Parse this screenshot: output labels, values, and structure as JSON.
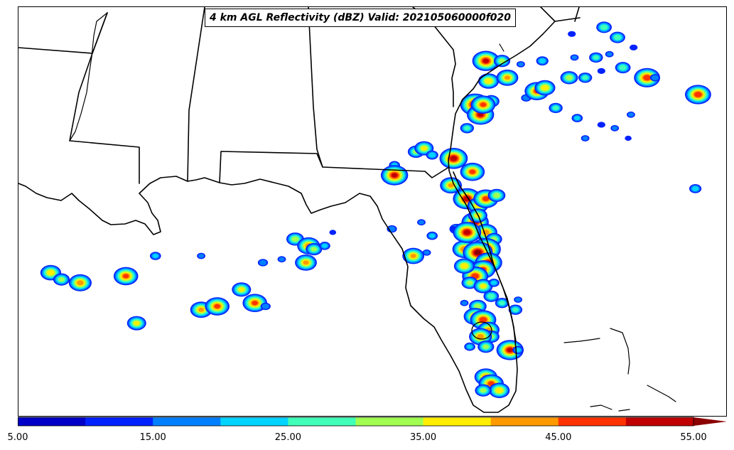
{
  "map": {
    "title": "4 km AGL Reflectivity (dBZ) Valid: 202105060000f020"
  },
  "colorbar": {
    "min": 5,
    "max": 55,
    "extend": "max",
    "colors": [
      "#0000c8",
      "#0022ff",
      "#0080ff",
      "#00d4ff",
      "#40ffb8",
      "#a0ff50",
      "#ffee00",
      "#ff9900",
      "#ff3300",
      "#c00000"
    ],
    "extend_color": "#8b0000",
    "ticks": [
      "5.00",
      "15.00",
      "25.00",
      "35.00",
      "45.00",
      "55.00"
    ]
  },
  "storms": [
    {
      "lon": -96.8,
      "lat": 28.3,
      "dbz": 38
    },
    {
      "lon": -96.4,
      "lat": 28.1,
      "dbz": 30
    },
    {
      "lon": -95.7,
      "lat": 28.0,
      "dbz": 42
    },
    {
      "lon": -94.0,
      "lat": 28.2,
      "dbz": 45
    },
    {
      "lon": -93.6,
      "lat": 26.8,
      "dbz": 35
    },
    {
      "lon": -92.9,
      "lat": 28.8,
      "dbz": 20
    },
    {
      "lon": -91.2,
      "lat": 27.2,
      "dbz": 40
    },
    {
      "lon": -91.2,
      "lat": 28.8,
      "dbz": 15
    },
    {
      "lon": -90.6,
      "lat": 27.3,
      "dbz": 45
    },
    {
      "lon": -89.7,
      "lat": 27.8,
      "dbz": 35
    },
    {
      "lon": -89.2,
      "lat": 27.4,
      "dbz": 45
    },
    {
      "lon": -88.8,
      "lat": 27.3,
      "dbz": 18
    },
    {
      "lon": -88.9,
      "lat": 28.6,
      "dbz": 18
    },
    {
      "lon": -88.2,
      "lat": 28.7,
      "dbz": 15
    },
    {
      "lon": -87.7,
      "lat": 29.3,
      "dbz": 32
    },
    {
      "lon": -87.2,
      "lat": 29.1,
      "dbz": 42
    },
    {
      "lon": -87.0,
      "lat": 29.0,
      "dbz": 30
    },
    {
      "lon": -86.6,
      "lat": 29.1,
      "dbz": 20
    },
    {
      "lon": -87.3,
      "lat": 28.6,
      "dbz": 40
    },
    {
      "lon": -86.3,
      "lat": 29.5,
      "dbz": 12
    },
    {
      "lon": -84.1,
      "lat": 29.6,
      "dbz": 18
    },
    {
      "lon": -83.0,
      "lat": 29.8,
      "dbz": 15
    },
    {
      "lon": -82.6,
      "lat": 29.4,
      "dbz": 20
    },
    {
      "lon": -81.4,
      "lat": 29.0,
      "dbz": 44
    },
    {
      "lon": -83.3,
      "lat": 28.8,
      "dbz": 40
    },
    {
      "lon": -81.7,
      "lat": 29.6,
      "dbz": 25
    },
    {
      "lon": -81.8,
      "lat": 29.6,
      "dbz": 14
    },
    {
      "lon": -82.8,
      "lat": 28.9,
      "dbz": 15
    },
    {
      "lon": -84.0,
      "lat": 31.5,
      "dbz": 20
    },
    {
      "lon": -83.2,
      "lat": 31.9,
      "dbz": 30
    },
    {
      "lon": -82.9,
      "lat": 32.0,
      "dbz": 35
    },
    {
      "lon": -82.6,
      "lat": 31.8,
      "dbz": 22
    },
    {
      "lon": -81.8,
      "lat": 31.7,
      "dbz": 52
    },
    {
      "lon": -84.0,
      "lat": 31.2,
      "dbz": 50
    },
    {
      "lon": -81.3,
      "lat": 32.6,
      "dbz": 25
    },
    {
      "lon": -81.0,
      "lat": 33.3,
      "dbz": 55
    },
    {
      "lon": -80.8,
      "lat": 33.0,
      "dbz": 50
    },
    {
      "lon": -80.4,
      "lat": 33.4,
      "dbz": 30
    },
    {
      "lon": -80.7,
      "lat": 33.3,
      "dbz": 45
    },
    {
      "lon": -80.5,
      "lat": 34.0,
      "dbz": 38
    },
    {
      "lon": -79.8,
      "lat": 34.1,
      "dbz": 40
    },
    {
      "lon": -80.6,
      "lat": 34.6,
      "dbz": 50
    },
    {
      "lon": -80.0,
      "lat": 34.6,
      "dbz": 30
    },
    {
      "lon": -79.1,
      "lat": 33.5,
      "dbz": 18
    },
    {
      "lon": -78.7,
      "lat": 33.7,
      "dbz": 45
    },
    {
      "lon": -78.4,
      "lat": 33.8,
      "dbz": 38
    },
    {
      "lon": -78.0,
      "lat": 33.2,
      "dbz": 25
    },
    {
      "lon": -77.5,
      "lat": 34.1,
      "dbz": 32
    },
    {
      "lon": -76.9,
      "lat": 34.1,
      "dbz": 25
    },
    {
      "lon": -76.3,
      "lat": 34.3,
      "dbz": 14
    },
    {
      "lon": -75.5,
      "lat": 34.4,
      "dbz": 28
    },
    {
      "lon": -74.6,
      "lat": 34.1,
      "dbz": 48
    },
    {
      "lon": -74.3,
      "lat": 34.1,
      "dbz": 18
    },
    {
      "lon": -76.5,
      "lat": 34.7,
      "dbz": 25
    },
    {
      "lon": -76.0,
      "lat": 34.8,
      "dbz": 15
    },
    {
      "lon": -77.3,
      "lat": 34.7,
      "dbz": 15
    },
    {
      "lon": -78.5,
      "lat": 34.6,
      "dbz": 22
    },
    {
      "lon": -75.7,
      "lat": 35.3,
      "dbz": 28
    },
    {
      "lon": -75.1,
      "lat": 35.0,
      "dbz": 14
    },
    {
      "lon": -76.2,
      "lat": 35.6,
      "dbz": 28
    },
    {
      "lon": -77.4,
      "lat": 35.4,
      "dbz": 14
    },
    {
      "lon": -79.3,
      "lat": 34.5,
      "dbz": 15
    },
    {
      "lon": -75.2,
      "lat": 33.0,
      "dbz": 15
    },
    {
      "lon": -75.8,
      "lat": 32.6,
      "dbz": 15
    },
    {
      "lon": -75.3,
      "lat": 32.3,
      "dbz": 12
    },
    {
      "lon": -76.9,
      "lat": 32.3,
      "dbz": 15
    },
    {
      "lon": -76.3,
      "lat": 32.7,
      "dbz": 14
    },
    {
      "lon": -77.2,
      "lat": 32.9,
      "dbz": 20
    },
    {
      "lon": -72.7,
      "lat": 33.6,
      "dbz": 48
    },
    {
      "lon": -72.8,
      "lat": 30.8,
      "dbz": 22
    },
    {
      "lon": -81.9,
      "lat": 30.9,
      "dbz": 40
    },
    {
      "lon": -81.3,
      "lat": 30.5,
      "dbz": 52
    },
    {
      "lon": -81.1,
      "lat": 31.3,
      "dbz": 45
    },
    {
      "lon": -80.9,
      "lat": 30.3,
      "dbz": 38
    },
    {
      "lon": -80.6,
      "lat": 30.5,
      "dbz": 46
    },
    {
      "lon": -80.2,
      "lat": 30.6,
      "dbz": 32
    },
    {
      "lon": -81.0,
      "lat": 29.8,
      "dbz": 50
    },
    {
      "lon": -80.6,
      "lat": 29.5,
      "dbz": 42
    },
    {
      "lon": -80.3,
      "lat": 29.3,
      "dbz": 30
    },
    {
      "lon": -80.9,
      "lat": 30.0,
      "dbz": 35
    },
    {
      "lon": -81.3,
      "lat": 29.5,
      "dbz": 52
    },
    {
      "lon": -80.6,
      "lat": 29.0,
      "dbz": 55
    },
    {
      "lon": -80.9,
      "lat": 28.9,
      "dbz": 55
    },
    {
      "lon": -80.5,
      "lat": 28.6,
      "dbz": 50
    },
    {
      "lon": -80.7,
      "lat": 28.4,
      "dbz": 45
    },
    {
      "lon": -81.0,
      "lat": 28.2,
      "dbz": 48
    },
    {
      "lon": -81.4,
      "lat": 28.5,
      "dbz": 38
    },
    {
      "lon": -81.2,
      "lat": 28.0,
      "dbz": 30
    },
    {
      "lon": -80.7,
      "lat": 27.9,
      "dbz": 35
    },
    {
      "lon": -80.3,
      "lat": 28.0,
      "dbz": 20
    },
    {
      "lon": -80.4,
      "lat": 27.6,
      "dbz": 28
    },
    {
      "lon": -80.9,
      "lat": 27.3,
      "dbz": 32
    },
    {
      "lon": -80.0,
      "lat": 27.4,
      "dbz": 25
    },
    {
      "lon": -79.5,
      "lat": 27.2,
      "dbz": 25
    },
    {
      "lon": -79.4,
      "lat": 27.5,
      "dbz": 15
    },
    {
      "lon": -81.0,
      "lat": 27.0,
      "dbz": 42
    },
    {
      "lon": -80.7,
      "lat": 26.9,
      "dbz": 48
    },
    {
      "lon": -80.5,
      "lat": 26.6,
      "dbz": 40
    },
    {
      "lon": -80.4,
      "lat": 26.4,
      "dbz": 30
    },
    {
      "lon": -80.8,
      "lat": 26.4,
      "dbz": 42
    },
    {
      "lon": -80.6,
      "lat": 26.1,
      "dbz": 30
    },
    {
      "lon": -79.7,
      "lat": 26.0,
      "dbz": 50
    },
    {
      "lon": -79.4,
      "lat": 26.0,
      "dbz": 20
    },
    {
      "lon": -80.6,
      "lat": 25.2,
      "dbz": 42
    },
    {
      "lon": -80.4,
      "lat": 25.0,
      "dbz": 46
    },
    {
      "lon": -80.1,
      "lat": 24.8,
      "dbz": 38
    },
    {
      "lon": -80.7,
      "lat": 24.8,
      "dbz": 30
    },
    {
      "lon": -81.4,
      "lat": 27.4,
      "dbz": 15
    },
    {
      "lon": -81.2,
      "lat": 26.1,
      "dbz": 20
    }
  ]
}
